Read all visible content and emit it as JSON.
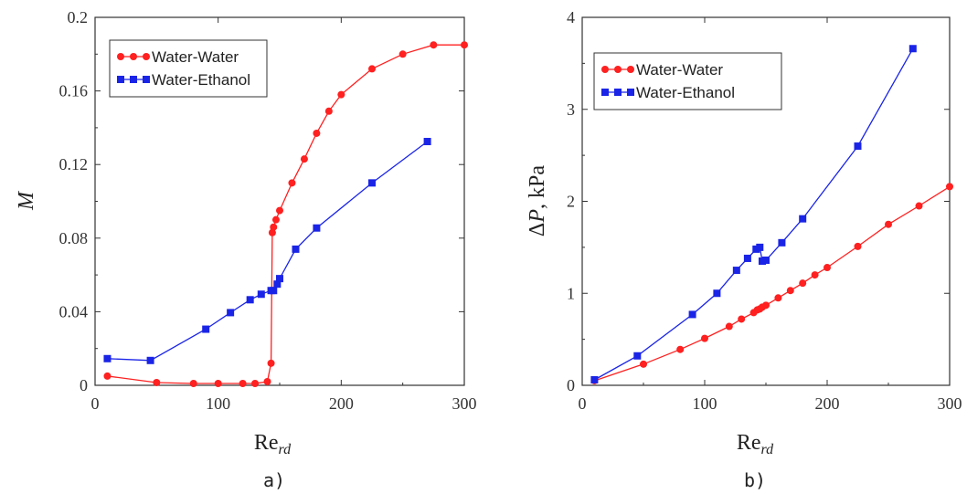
{
  "colors": {
    "water_water": "#ff2020",
    "water_ethanol": "#1a24e6"
  },
  "chart_data": [
    {
      "type": "line",
      "caption": "a)",
      "ylabel": "M",
      "xlabel_main": "Re",
      "xlabel_sub": "rd",
      "xlim": [
        0,
        300
      ],
      "ylim": [
        0,
        0.2
      ],
      "xticks": [
        0,
        100,
        200,
        300
      ],
      "yticks": [
        0,
        0.04,
        0.08,
        0.12,
        0.16,
        0.2
      ],
      "xtick_labels": [
        "0",
        "100",
        "200",
        "300"
      ],
      "ytick_labels": [
        "0",
        "0.04",
        "0.08",
        "0.12",
        "0.16",
        "0.2"
      ],
      "legend_position": "top-left",
      "series": [
        {
          "name": "Water-Water",
          "marker": "circle",
          "x": [
            10,
            50,
            80,
            100,
            120,
            130,
            140,
            143,
            144,
            145,
            147,
            150,
            160,
            170,
            180,
            190,
            200,
            225,
            250,
            275,
            300
          ],
          "y": [
            0.005,
            0.0015,
            0.001,
            0.001,
            0.001,
            0.001,
            0.002,
            0.012,
            0.083,
            0.086,
            0.09,
            0.095,
            0.11,
            0.123,
            0.137,
            0.149,
            0.158,
            0.172,
            0.18,
            0.185,
            0.185
          ]
        },
        {
          "name": "Water-Ethanol",
          "marker": "square",
          "x": [
            10,
            45,
            90,
            110,
            126,
            135,
            143,
            145,
            148,
            150,
            163,
            180,
            225,
            270
          ],
          "y": [
            0.0145,
            0.0135,
            0.0305,
            0.0395,
            0.0465,
            0.0495,
            0.0515,
            0.0515,
            0.055,
            0.058,
            0.074,
            0.0855,
            0.11,
            0.1325
          ]
        }
      ]
    },
    {
      "type": "line",
      "caption": "b)",
      "ylabel": "ΔP, kPa",
      "xlabel_main": "Re",
      "xlabel_sub": "rd",
      "xlim": [
        0,
        300
      ],
      "ylim": [
        0,
        4
      ],
      "xticks": [
        0,
        100,
        200,
        300
      ],
      "yticks": [
        0,
        1,
        2,
        3,
        4
      ],
      "xtick_labels": [
        "0",
        "100",
        "200",
        "300"
      ],
      "ytick_labels": [
        "0",
        "1",
        "2",
        "3",
        "4"
      ],
      "legend_position": "top-left",
      "series": [
        {
          "name": "Water-Water",
          "marker": "circle",
          "x": [
            10,
            50,
            80,
            100,
            120,
            130,
            140,
            143,
            145,
            147,
            150,
            160,
            170,
            180,
            190,
            200,
            225,
            250,
            275,
            300
          ],
          "y": [
            0.05,
            0.23,
            0.39,
            0.51,
            0.64,
            0.72,
            0.79,
            0.82,
            0.83,
            0.85,
            0.87,
            0.95,
            1.03,
            1.11,
            1.2,
            1.28,
            1.51,
            1.75,
            1.95,
            2.16
          ]
        },
        {
          "name": "Water-Ethanol",
          "marker": "square",
          "x": [
            10,
            45,
            90,
            110,
            126,
            135,
            142,
            145,
            147,
            150,
            163,
            180,
            225,
            270
          ],
          "y": [
            0.06,
            0.32,
            0.77,
            1.0,
            1.25,
            1.38,
            1.48,
            1.5,
            1.35,
            1.36,
            1.55,
            1.81,
            2.6,
            3.66
          ]
        }
      ]
    }
  ]
}
